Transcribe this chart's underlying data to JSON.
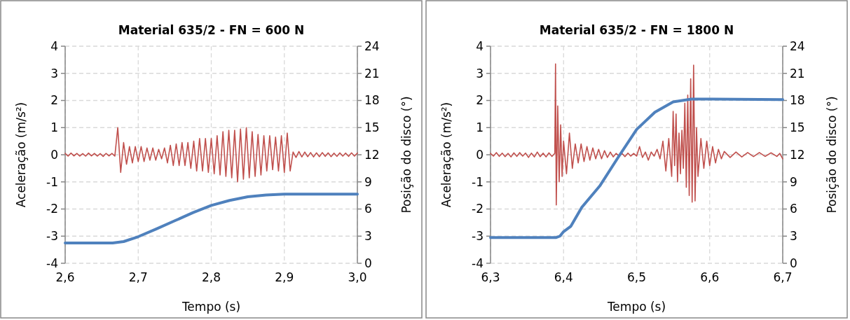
{
  "chart_data": [
    {
      "type": "line",
      "title": "Material 635/2 - FN = 600 N",
      "xlabel": "Tempo (s)",
      "ylabel": "Aceleração (m/s²)",
      "y2label": "Posição do disco (°)",
      "xlim": [
        2.6,
        3.0
      ],
      "xticks": [
        {
          "value": 2.6,
          "label": "2,6"
        },
        {
          "value": 2.7,
          "label": "2,7"
        },
        {
          "value": 2.8,
          "label": "2,8"
        },
        {
          "value": 2.9,
          "label": "2,9"
        },
        {
          "value": 3.0,
          "label": "3,0"
        }
      ],
      "ylim": [
        -4,
        4
      ],
      "yticks": [
        -4,
        -3,
        -2,
        -1,
        0,
        1,
        2,
        3,
        4
      ],
      "y2lim": [
        0,
        24
      ],
      "y2ticks": [
        0,
        3,
        6,
        9,
        12,
        15,
        18,
        21,
        24
      ],
      "grid": true,
      "series": [
        {
          "color": "#c0504d",
          "x": [
            2.6,
            2.604,
            2.608,
            2.612,
            2.616,
            2.62,
            2.624,
            2.628,
            2.632,
            2.636,
            2.64,
            2.644,
            2.648,
            2.652,
            2.656,
            2.66,
            2.664,
            2.668,
            2.672,
            2.676,
            2.68,
            2.684,
            2.688,
            2.692,
            2.696,
            2.7,
            2.704,
            2.708,
            2.712,
            2.716,
            2.72,
            2.724,
            2.728,
            2.732,
            2.736,
            2.74,
            2.744,
            2.748,
            2.752,
            2.756,
            2.76,
            2.764,
            2.768,
            2.772,
            2.776,
            2.78,
            2.784,
            2.788,
            2.792,
            2.796,
            2.8,
            2.804,
            2.808,
            2.812,
            2.816,
            2.82,
            2.824,
            2.828,
            2.832,
            2.836,
            2.84,
            2.844,
            2.848,
            2.852,
            2.856,
            2.86,
            2.864,
            2.868,
            2.872,
            2.876,
            2.88,
            2.884,
            2.888,
            2.892,
            2.896,
            2.9,
            2.904,
            2.908,
            2.912,
            2.916,
            2.92,
            2.924,
            2.928,
            2.932,
            2.936,
            2.94,
            2.944,
            2.948,
            2.952,
            2.956,
            2.96,
            2.964,
            2.968,
            2.972,
            2.976,
            2.98,
            2.984,
            2.988,
            2.992,
            2.996,
            3.0
          ],
          "values": [
            0.05,
            -0.05,
            0.06,
            -0.04,
            0.05,
            -0.05,
            0.04,
            -0.05,
            0.06,
            -0.04,
            0.05,
            -0.05,
            0.04,
            -0.06,
            0.05,
            -0.04,
            0.05,
            -0.05,
            1.0,
            -0.65,
            0.45,
            -0.35,
            0.3,
            -0.3,
            0.3,
            -0.25,
            0.3,
            -0.25,
            0.25,
            -0.2,
            0.25,
            -0.2,
            0.2,
            -0.15,
            0.25,
            -0.3,
            0.35,
            -0.4,
            0.4,
            -0.4,
            0.45,
            -0.4,
            0.45,
            -0.5,
            0.5,
            -0.6,
            0.6,
            -0.6,
            0.6,
            -0.65,
            0.6,
            -0.7,
            0.7,
            -0.75,
            0.85,
            -0.8,
            0.9,
            -0.85,
            0.9,
            -1.0,
            0.95,
            -0.9,
            1.0,
            -0.85,
            0.85,
            -0.8,
            0.75,
            -0.75,
            0.7,
            -0.6,
            0.7,
            -0.55,
            0.65,
            -0.6,
            0.7,
            -0.65,
            0.8,
            -0.6,
            0.1,
            -0.1,
            0.12,
            -0.08,
            0.1,
            -0.07,
            0.08,
            -0.08,
            0.07,
            -0.07,
            0.08,
            -0.06,
            0.07,
            -0.07,
            0.06,
            -0.06,
            0.07,
            -0.05,
            0.06,
            -0.06,
            0.07,
            -0.05,
            0.06
          ]
        },
        {
          "color": "#4f81bd",
          "axis": "y2",
          "x": [
            2.6,
            2.665,
            2.68,
            2.7,
            2.725,
            2.75,
            2.775,
            2.8,
            2.825,
            2.85,
            2.875,
            2.9,
            3.0
          ],
          "values": [
            2.25,
            2.25,
            2.4,
            2.94,
            3.8,
            4.7,
            5.6,
            6.4,
            6.95,
            7.35,
            7.55,
            7.65,
            7.65
          ]
        }
      ]
    },
    {
      "type": "line",
      "title": "Material 635/2 - FN = 1800 N",
      "xlabel": "Tempo (s)",
      "ylabel": "Aceleração (m/s²)",
      "y2label": "Posição do disco (°)",
      "xlim": [
        6.3,
        6.7
      ],
      "xticks": [
        {
          "value": 6.3,
          "label": "6,3"
        },
        {
          "value": 6.4,
          "label": "6,4"
        },
        {
          "value": 6.5,
          "label": "6,5"
        },
        {
          "value": 6.6,
          "label": "6,6"
        },
        {
          "value": 6.7,
          "label": "6,7"
        }
      ],
      "ylim": [
        -4,
        4
      ],
      "yticks": [
        -4,
        -3,
        -2,
        -1,
        0,
        1,
        2,
        3,
        4
      ],
      "y2lim": [
        0,
        24
      ],
      "y2ticks": [
        0,
        3,
        6,
        9,
        12,
        15,
        18,
        21,
        24
      ],
      "grid": true,
      "series": [
        {
          "color": "#c0504d",
          "x": [
            6.3,
            6.304,
            6.308,
            6.312,
            6.316,
            6.32,
            6.324,
            6.328,
            6.332,
            6.336,
            6.34,
            6.344,
            6.348,
            6.352,
            6.356,
            6.36,
            6.364,
            6.368,
            6.372,
            6.376,
            6.38,
            6.384,
            6.388,
            6.389,
            6.39,
            6.392,
            6.394,
            6.396,
            6.398,
            6.4,
            6.404,
            6.408,
            6.412,
            6.416,
            6.42,
            6.424,
            6.428,
            6.432,
            6.436,
            6.44,
            6.444,
            6.448,
            6.452,
            6.456,
            6.46,
            6.464,
            6.468,
            6.472,
            6.476,
            6.48,
            6.484,
            6.488,
            6.492,
            6.496,
            6.5,
            6.504,
            6.508,
            6.512,
            6.516,
            6.52,
            6.524,
            6.528,
            6.532,
            6.536,
            6.54,
            6.544,
            6.548,
            6.55,
            6.552,
            6.554,
            6.556,
            6.558,
            6.56,
            6.562,
            6.564,
            6.566,
            6.568,
            6.57,
            6.572,
            6.574,
            6.576,
            6.578,
            6.58,
            6.582,
            6.584,
            6.588,
            6.592,
            6.596,
            6.6,
            6.604,
            6.608,
            6.612,
            6.616,
            6.62,
            6.628,
            6.636,
            6.644,
            6.652,
            6.66,
            6.668,
            6.676,
            6.684,
            6.692,
            6.696,
            6.7
          ],
          "values": [
            0.05,
            -0.05,
            0.08,
            -0.06,
            0.06,
            -0.07,
            0.05,
            -0.08,
            0.07,
            -0.06,
            0.08,
            -0.05,
            0.06,
            -0.1,
            0.06,
            -0.08,
            0.1,
            -0.07,
            0.06,
            -0.08,
            0.07,
            -0.06,
            0.05,
            3.35,
            -1.85,
            1.8,
            -1.0,
            1.1,
            -0.8,
            0.5,
            -0.7,
            0.8,
            -0.5,
            0.4,
            -0.3,
            0.4,
            -0.25,
            0.3,
            -0.2,
            0.25,
            -0.15,
            0.2,
            -0.15,
            0.15,
            -0.1,
            0.1,
            -0.08,
            0.05,
            -0.05,
            0.05,
            -0.07,
            0.06,
            -0.05,
            0.05,
            -0.05,
            0.3,
            -0.1,
            0.1,
            -0.2,
            0.1,
            -0.05,
            0.2,
            -0.15,
            0.5,
            -0.6,
            0.6,
            -0.8,
            1.6,
            -0.4,
            1.5,
            -1.0,
            0.8,
            -0.7,
            0.9,
            -0.5,
            1.9,
            -1.2,
            2.2,
            -1.5,
            2.8,
            -1.75,
            3.3,
            -1.7,
            1.0,
            -0.8,
            0.6,
            -0.5,
            0.5,
            -0.4,
            0.3,
            -0.3,
            0.2,
            -0.15,
            0.12,
            -0.1,
            0.1,
            -0.08,
            0.08,
            -0.07,
            0.08,
            -0.06,
            0.07,
            -0.06,
            0.05,
            -0.15
          ]
        },
        {
          "color": "#4f81bd",
          "axis": "y2",
          "x": [
            6.3,
            6.39,
            6.395,
            6.4,
            6.41,
            6.425,
            6.45,
            6.475,
            6.5,
            6.525,
            6.55,
            6.575,
            6.6,
            6.7
          ],
          "values": [
            2.85,
            2.85,
            3.0,
            3.5,
            4.1,
            6.2,
            8.6,
            11.75,
            14.8,
            16.7,
            17.85,
            18.15,
            18.15,
            18.1
          ]
        }
      ]
    }
  ]
}
